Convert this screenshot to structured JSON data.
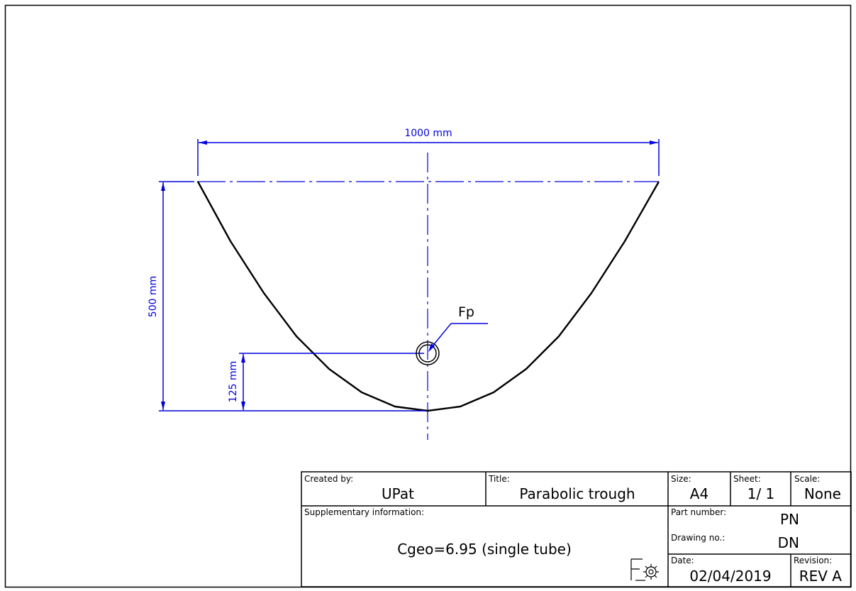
{
  "drawing": {
    "width_dimension": "1000 mm",
    "height_dimension": "500 mm",
    "focus_dimension": "125 mm",
    "focus_label": "Fp",
    "line_color": "#0000dd",
    "profile_color": "#000000"
  },
  "title_block": {
    "created_by_label": "Created by:",
    "created_by_value": "UPat",
    "title_label": "Title:",
    "title_value": "Parabolic trough",
    "size_label": "Size:",
    "size_value": "A4",
    "sheet_label": "Sheet:",
    "sheet_value": "1/ 1",
    "scale_label": "Scale:",
    "scale_value": "None",
    "supplementary_label": "Supplementary information:",
    "supplementary_value": "Cgeo=6.95 (single tube)",
    "part_number_label": "Part number:",
    "part_number_value": "PN",
    "drawing_no_label": "Drawing no.:",
    "drawing_no_value": "DN",
    "date_label": "Date:",
    "date_value": "02/04/2019",
    "revision_label": "Revision:",
    "revision_value": "REV A",
    "logo_icon": "freecad-logo-icon"
  }
}
